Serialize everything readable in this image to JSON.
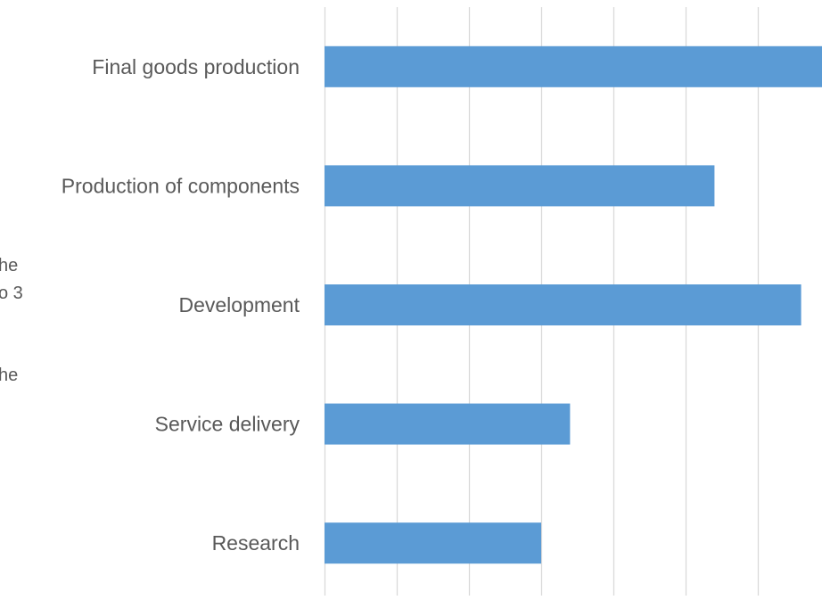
{
  "background_text": {
    "line1": "he",
    "line2": "o 3",
    "line3": "he"
  },
  "chart_data": {
    "type": "bar",
    "orientation": "horizontal",
    "categories": [
      "Final goods production",
      "Production of components",
      "Development",
      "Service delivery",
      "Research"
    ],
    "values": [
      69.5,
      54,
      66,
      34,
      30
    ],
    "xlim": [
      0,
      69
    ],
    "grid": true,
    "bar_color": "#5b9bd5",
    "grid_color": "#d9d9d9",
    "label_color": "#595959"
  }
}
